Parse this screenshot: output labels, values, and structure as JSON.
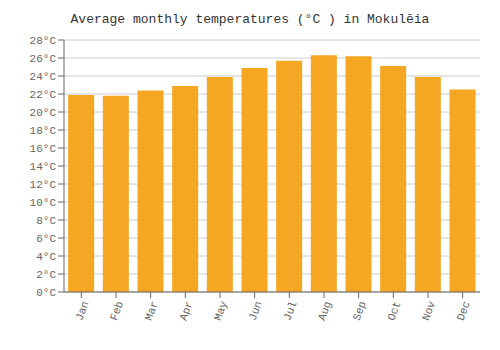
{
  "chart_data": {
    "type": "bar",
    "title": "Average monthly temperatures (°C ) in Mokulēia",
    "categories": [
      "Jan",
      "Feb",
      "Mar",
      "Apr",
      "May",
      "Jun",
      "Jul",
      "Aug",
      "Sep",
      "Oct",
      "Nov",
      "Dec"
    ],
    "values": [
      21.9,
      21.8,
      22.4,
      22.9,
      23.9,
      24.9,
      25.7,
      26.3,
      26.2,
      25.1,
      23.9,
      22.5
    ],
    "color": "#F5A623",
    "ylim": [
      0,
      28
    ],
    "yticks": [
      {
        "value": 0,
        "label": "0°C"
      },
      {
        "value": 2,
        "label": "2°C"
      },
      {
        "value": 4,
        "label": "4°C"
      },
      {
        "value": 6,
        "label": "6°C"
      },
      {
        "value": 8,
        "label": "8°C"
      },
      {
        "value": 10,
        "label": "10°C"
      },
      {
        "value": 12,
        "label": "12°C"
      },
      {
        "value": 14,
        "label": "14°C"
      },
      {
        "value": 16,
        "label": "16°C"
      },
      {
        "value": 18,
        "label": "18°C"
      },
      {
        "value": 20,
        "label": "20°C"
      },
      {
        "value": 22,
        "label": "22°C"
      },
      {
        "value": 24,
        "label": "24°C"
      },
      {
        "value": 26,
        "label": "26°C"
      },
      {
        "value": 28,
        "label": "28°C"
      }
    ],
    "grid": true
  }
}
